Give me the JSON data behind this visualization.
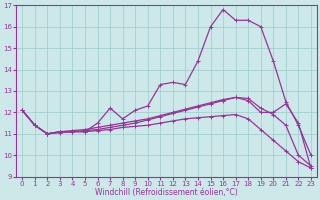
{
  "xlabel": "Windchill (Refroidissement éolien,°C)",
  "xlim": [
    -0.5,
    23.5
  ],
  "ylim": [
    9,
    17
  ],
  "yticks": [
    9,
    10,
    11,
    12,
    13,
    14,
    15,
    16,
    17
  ],
  "xticks": [
    0,
    1,
    2,
    3,
    4,
    5,
    6,
    7,
    8,
    9,
    10,
    11,
    12,
    13,
    14,
    15,
    16,
    17,
    18,
    19,
    20,
    21,
    22,
    23
  ],
  "background_color": "#cce8e8",
  "grid_color": "#99cccc",
  "line_color": "#993399",
  "lines": [
    {
      "x": [
        0,
        1,
        2,
        3,
        4,
        5,
        6,
        7,
        8,
        9,
        10,
        11,
        12,
        13,
        14,
        15,
        16,
        17,
        18,
        19,
        20,
        21,
        22,
        23
      ],
      "y": [
        12.1,
        11.4,
        11.0,
        11.1,
        11.1,
        11.1,
        11.5,
        12.2,
        11.7,
        12.1,
        12.3,
        13.3,
        13.4,
        13.3,
        14.4,
        16.0,
        16.8,
        16.3,
        16.3,
        16.0,
        14.4,
        12.5,
        11.4,
        10.0
      ]
    },
    {
      "x": [
        0,
        1,
        2,
        3,
        4,
        5,
        6,
        7,
        8,
        9,
        10,
        11,
        12,
        13,
        14,
        15,
        16,
        17,
        18,
        19,
        20,
        21,
        22,
        23
      ],
      "y": [
        12.1,
        11.4,
        11.0,
        11.1,
        11.15,
        11.2,
        11.3,
        11.4,
        11.5,
        11.6,
        11.7,
        11.85,
        12.0,
        12.15,
        12.3,
        12.45,
        12.6,
        12.7,
        12.55,
        12.0,
        12.0,
        12.4,
        11.5,
        9.4
      ]
    },
    {
      "x": [
        0,
        1,
        2,
        3,
        4,
        5,
        6,
        7,
        8,
        9,
        10,
        11,
        12,
        13,
        14,
        15,
        16,
        17,
        18,
        19,
        20,
        21,
        22,
        23
      ],
      "y": [
        12.1,
        11.4,
        11.0,
        11.1,
        11.1,
        11.15,
        11.2,
        11.3,
        11.4,
        11.5,
        11.65,
        11.8,
        11.95,
        12.1,
        12.25,
        12.4,
        12.55,
        12.7,
        12.65,
        12.2,
        11.9,
        11.4,
        10.0,
        9.5
      ]
    },
    {
      "x": [
        0,
        1,
        2,
        3,
        4,
        5,
        6,
        7,
        8,
        9,
        10,
        11,
        12,
        13,
        14,
        15,
        16,
        17,
        18,
        19,
        20,
        21,
        22,
        23
      ],
      "y": [
        12.1,
        11.4,
        11.0,
        11.05,
        11.1,
        11.1,
        11.15,
        11.2,
        11.3,
        11.35,
        11.4,
        11.5,
        11.6,
        11.7,
        11.75,
        11.8,
        11.85,
        11.9,
        11.7,
        11.2,
        10.7,
        10.2,
        9.7,
        9.4
      ]
    }
  ],
  "marker": "+",
  "marker_size": 3,
  "line_width": 0.9,
  "tick_fontsize": 5,
  "xlabel_fontsize": 5.5
}
